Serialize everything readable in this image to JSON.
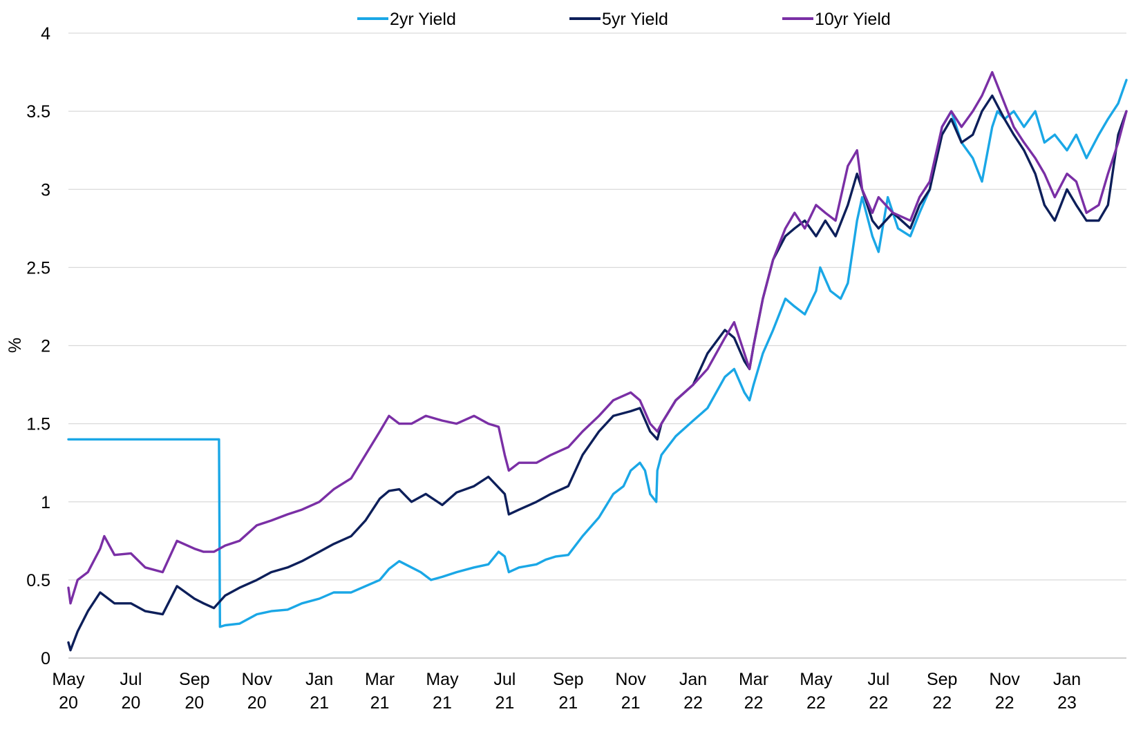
{
  "chart_data": {
    "type": "line",
    "title": "",
    "xlabel": "",
    "ylabel": "%",
    "ylim": [
      0,
      4
    ],
    "yticks": [
      "0",
      "0.5",
      "1",
      "1.5",
      "2",
      "2.5",
      "3",
      "3.5",
      "4"
    ],
    "xlim": [
      "2020-05-01",
      "2023-02-28"
    ],
    "xticks": [
      {
        "date": "2020-05-01",
        "label": [
          "May",
          "20"
        ]
      },
      {
        "date": "2020-07-01",
        "label": [
          "Jul",
          "20"
        ]
      },
      {
        "date": "2020-09-01",
        "label": [
          "Sep",
          "20"
        ]
      },
      {
        "date": "2020-11-01",
        "label": [
          "Nov",
          "20"
        ]
      },
      {
        "date": "2021-01-01",
        "label": [
          "Jan",
          "21"
        ]
      },
      {
        "date": "2021-03-01",
        "label": [
          "Mar",
          "21"
        ]
      },
      {
        "date": "2021-05-01",
        "label": [
          "May",
          "21"
        ]
      },
      {
        "date": "2021-07-01",
        "label": [
          "Jul",
          "21"
        ]
      },
      {
        "date": "2021-09-01",
        "label": [
          "Sep",
          "21"
        ]
      },
      {
        "date": "2021-11-01",
        "label": [
          "Nov",
          "21"
        ]
      },
      {
        "date": "2022-01-01",
        "label": [
          "Jan",
          "22"
        ]
      },
      {
        "date": "2022-03-01",
        "label": [
          "Mar",
          "22"
        ]
      },
      {
        "date": "2022-05-01",
        "label": [
          "May",
          "22"
        ]
      },
      {
        "date": "2022-07-01",
        "label": [
          "Jul",
          "22"
        ]
      },
      {
        "date": "2022-09-01",
        "label": [
          "Sep",
          "22"
        ]
      },
      {
        "date": "2022-11-01",
        "label": [
          "Nov",
          "22"
        ]
      },
      {
        "date": "2023-01-01",
        "label": [
          "Jan",
          "23"
        ]
      }
    ],
    "grid": {
      "horizontal": true,
      "vertical": false
    },
    "legend": "top",
    "series": [
      {
        "name": "2yr Yield",
        "color": "#1aa7e6",
        "x": [
          "2020-05-01",
          "2020-06-01",
          "2020-07-01",
          "2020-08-01",
          "2020-09-01",
          "2020-09-25",
          "2020-09-26",
          "2020-10-01",
          "2020-10-15",
          "2020-11-01",
          "2020-11-15",
          "2020-12-01",
          "2020-12-15",
          "2021-01-01",
          "2021-01-15",
          "2021-02-01",
          "2021-02-15",
          "2021-03-01",
          "2021-03-10",
          "2021-03-20",
          "2021-04-01",
          "2021-04-10",
          "2021-04-20",
          "2021-05-01",
          "2021-05-15",
          "2021-06-01",
          "2021-06-15",
          "2021-06-25",
          "2021-07-01",
          "2021-07-05",
          "2021-07-15",
          "2021-08-01",
          "2021-08-10",
          "2021-08-20",
          "2021-09-01",
          "2021-09-15",
          "2021-10-01",
          "2021-10-15",
          "2021-10-25",
          "2021-11-01",
          "2021-11-10",
          "2021-11-15",
          "2021-11-20",
          "2021-11-26",
          "2021-11-27",
          "2021-12-01",
          "2021-12-15",
          "2022-01-01",
          "2022-01-15",
          "2022-02-01",
          "2022-02-10",
          "2022-02-20",
          "2022-02-25",
          "2022-03-01",
          "2022-03-10",
          "2022-03-20",
          "2022-04-01",
          "2022-04-10",
          "2022-04-20",
          "2022-05-01",
          "2022-05-05",
          "2022-05-15",
          "2022-05-25",
          "2022-06-01",
          "2022-06-10",
          "2022-06-15",
          "2022-06-25",
          "2022-07-01",
          "2022-07-10",
          "2022-07-20",
          "2022-08-01",
          "2022-08-10",
          "2022-08-20",
          "2022-09-01",
          "2022-09-10",
          "2022-09-20",
          "2022-10-01",
          "2022-10-10",
          "2022-10-20",
          "2022-10-25",
          "2022-11-01",
          "2022-11-10",
          "2022-11-20",
          "2022-12-01",
          "2022-12-10",
          "2022-12-20",
          "2023-01-01",
          "2023-01-10",
          "2023-01-20",
          "2023-02-01",
          "2023-02-10",
          "2023-02-20",
          "2023-02-28"
        ],
        "values": [
          1.4,
          1.4,
          1.4,
          1.4,
          1.4,
          1.4,
          0.2,
          0.21,
          0.22,
          0.28,
          0.3,
          0.31,
          0.35,
          0.38,
          0.42,
          0.42,
          0.46,
          0.5,
          0.57,
          0.62,
          0.58,
          0.55,
          0.5,
          0.52,
          0.55,
          0.58,
          0.6,
          0.68,
          0.65,
          0.55,
          0.58,
          0.6,
          0.63,
          0.65,
          0.66,
          0.78,
          0.9,
          1.05,
          1.1,
          1.2,
          1.25,
          1.2,
          1.05,
          1.0,
          1.2,
          1.3,
          1.42,
          1.52,
          1.6,
          1.8,
          1.85,
          1.7,
          1.65,
          1.75,
          1.95,
          2.1,
          2.3,
          2.25,
          2.2,
          2.35,
          2.5,
          2.35,
          2.3,
          2.4,
          2.8,
          2.95,
          2.7,
          2.6,
          2.95,
          2.75,
          2.7,
          2.85,
          3.0,
          3.4,
          3.5,
          3.3,
          3.2,
          3.05,
          3.4,
          3.5,
          3.45,
          3.5,
          3.4,
          3.5,
          3.3,
          3.35,
          3.25,
          3.35,
          3.2,
          3.35,
          3.45,
          3.55,
          3.7
        ]
      },
      {
        "name": "5yr Yield",
        "color": "#0d1f5a",
        "x": [
          "2020-05-01",
          "2020-05-03",
          "2020-05-10",
          "2020-05-20",
          "2020-06-01",
          "2020-06-15",
          "2020-07-01",
          "2020-07-15",
          "2020-08-01",
          "2020-08-15",
          "2020-09-01",
          "2020-09-10",
          "2020-09-20",
          "2020-10-01",
          "2020-10-15",
          "2020-11-01",
          "2020-11-15",
          "2020-12-01",
          "2020-12-15",
          "2021-01-01",
          "2021-01-15",
          "2021-02-01",
          "2021-02-15",
          "2021-03-01",
          "2021-03-10",
          "2021-03-20",
          "2021-04-01",
          "2021-04-15",
          "2021-05-01",
          "2021-05-15",
          "2021-06-01",
          "2021-06-15",
          "2021-07-01",
          "2021-07-05",
          "2021-07-15",
          "2021-08-01",
          "2021-08-15",
          "2021-09-01",
          "2021-09-15",
          "2021-10-01",
          "2021-10-15",
          "2021-11-01",
          "2021-11-10",
          "2021-11-20",
          "2021-11-27",
          "2021-12-01",
          "2021-12-15",
          "2022-01-01",
          "2022-01-15",
          "2022-02-01",
          "2022-02-10",
          "2022-02-20",
          "2022-02-25",
          "2022-03-01",
          "2022-03-10",
          "2022-03-20",
          "2022-04-01",
          "2022-04-10",
          "2022-04-20",
          "2022-05-01",
          "2022-05-10",
          "2022-05-20",
          "2022-06-01",
          "2022-06-10",
          "2022-06-15",
          "2022-06-25",
          "2022-07-01",
          "2022-07-15",
          "2022-08-01",
          "2022-08-10",
          "2022-08-20",
          "2022-09-01",
          "2022-09-10",
          "2022-09-20",
          "2022-10-01",
          "2022-10-10",
          "2022-10-20",
          "2022-11-01",
          "2022-11-10",
          "2022-11-20",
          "2022-12-01",
          "2022-12-10",
          "2022-12-20",
          "2023-01-01",
          "2023-01-10",
          "2023-01-20",
          "2023-02-01",
          "2023-02-10",
          "2023-02-20",
          "2023-02-28"
        ],
        "values": [
          0.1,
          0.05,
          0.17,
          0.3,
          0.42,
          0.35,
          0.35,
          0.3,
          0.28,
          0.46,
          0.38,
          0.35,
          0.32,
          0.4,
          0.45,
          0.5,
          0.55,
          0.58,
          0.62,
          0.68,
          0.73,
          0.78,
          0.88,
          1.02,
          1.07,
          1.08,
          1.0,
          1.05,
          0.98,
          1.06,
          1.1,
          1.16,
          1.05,
          0.92,
          0.95,
          1.0,
          1.05,
          1.1,
          1.3,
          1.45,
          1.55,
          1.58,
          1.6,
          1.45,
          1.4,
          1.5,
          1.65,
          1.75,
          1.95,
          2.1,
          2.05,
          1.9,
          1.85,
          2.0,
          2.3,
          2.55,
          2.7,
          2.75,
          2.8,
          2.7,
          2.8,
          2.7,
          2.9,
          3.1,
          3.0,
          2.8,
          2.75,
          2.85,
          2.75,
          2.9,
          3.0,
          3.35,
          3.45,
          3.3,
          3.35,
          3.5,
          3.6,
          3.45,
          3.35,
          3.25,
          3.1,
          2.9,
          2.8,
          3.0,
          2.9,
          2.8,
          2.8,
          2.9,
          3.35,
          3.5
        ]
      },
      {
        "name": "10yr Yield",
        "color": "#7a2fa5",
        "x": [
          "2020-05-01",
          "2020-05-03",
          "2020-05-10",
          "2020-05-20",
          "2020-06-01",
          "2020-06-05",
          "2020-06-15",
          "2020-07-01",
          "2020-07-15",
          "2020-08-01",
          "2020-08-15",
          "2020-09-01",
          "2020-09-10",
          "2020-09-20",
          "2020-10-01",
          "2020-10-15",
          "2020-11-01",
          "2020-11-15",
          "2020-12-01",
          "2020-12-15",
          "2021-01-01",
          "2021-01-15",
          "2021-02-01",
          "2021-02-15",
          "2021-03-01",
          "2021-03-10",
          "2021-03-20",
          "2021-04-01",
          "2021-04-15",
          "2021-05-01",
          "2021-05-15",
          "2021-06-01",
          "2021-06-15",
          "2021-06-25",
          "2021-07-01",
          "2021-07-05",
          "2021-07-15",
          "2021-08-01",
          "2021-08-15",
          "2021-09-01",
          "2021-09-15",
          "2021-10-01",
          "2021-10-15",
          "2021-11-01",
          "2021-11-10",
          "2021-11-20",
          "2021-11-27",
          "2021-12-01",
          "2021-12-15",
          "2022-01-01",
          "2022-01-15",
          "2022-02-01",
          "2022-02-10",
          "2022-02-20",
          "2022-02-25",
          "2022-03-01",
          "2022-03-10",
          "2022-03-20",
          "2022-04-01",
          "2022-04-10",
          "2022-04-20",
          "2022-05-01",
          "2022-05-10",
          "2022-05-20",
          "2022-06-01",
          "2022-06-10",
          "2022-06-15",
          "2022-06-25",
          "2022-07-01",
          "2022-07-15",
          "2022-08-01",
          "2022-08-10",
          "2022-08-20",
          "2022-09-01",
          "2022-09-10",
          "2022-09-20",
          "2022-10-01",
          "2022-10-10",
          "2022-10-20",
          "2022-11-01",
          "2022-11-10",
          "2022-11-20",
          "2022-12-01",
          "2022-12-10",
          "2022-12-20",
          "2023-01-01",
          "2023-01-10",
          "2023-01-20",
          "2023-02-01",
          "2023-02-10",
          "2023-02-20",
          "2023-02-28"
        ],
        "values": [
          0.45,
          0.35,
          0.5,
          0.55,
          0.7,
          0.78,
          0.66,
          0.67,
          0.58,
          0.55,
          0.75,
          0.7,
          0.68,
          0.68,
          0.72,
          0.75,
          0.85,
          0.88,
          0.92,
          0.95,
          1.0,
          1.08,
          1.15,
          1.3,
          1.45,
          1.55,
          1.5,
          1.5,
          1.55,
          1.52,
          1.5,
          1.55,
          1.5,
          1.48,
          1.3,
          1.2,
          1.25,
          1.25,
          1.3,
          1.35,
          1.45,
          1.55,
          1.65,
          1.7,
          1.65,
          1.5,
          1.45,
          1.5,
          1.65,
          1.75,
          1.85,
          2.05,
          2.15,
          1.95,
          1.85,
          2.0,
          2.3,
          2.55,
          2.75,
          2.85,
          2.75,
          2.9,
          2.85,
          2.8,
          3.15,
          3.25,
          3.0,
          2.85,
          2.95,
          2.85,
          2.8,
          2.95,
          3.05,
          3.4,
          3.5,
          3.4,
          3.5,
          3.6,
          3.75,
          3.55,
          3.4,
          3.3,
          3.2,
          3.1,
          2.95,
          3.1,
          3.05,
          2.85,
          2.9,
          3.1,
          3.3,
          3.5
        ]
      }
    ]
  }
}
